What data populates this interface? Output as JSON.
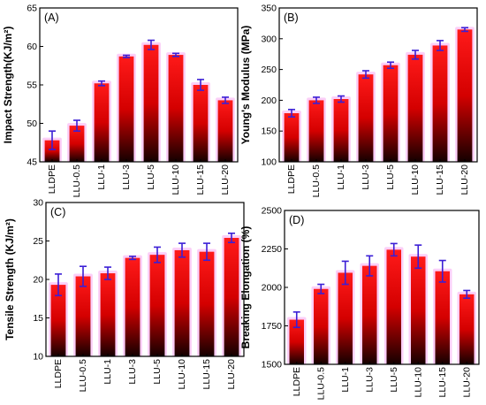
{
  "chart_data": [
    {
      "type": "bar",
      "panel_label": "(A)",
      "ylabel": "Impact Strength(KJ/m²)",
      "categories": [
        "LLDPE",
        "LLU-0.5",
        "LLU-1",
        "LLU-3",
        "LLU-5",
        "LLU-10",
        "LLU-15",
        "LLU-20"
      ],
      "values": [
        47.8,
        49.7,
        55.2,
        58.7,
        60.2,
        58.9,
        55.0,
        53.0
      ],
      "errors": [
        1.2,
        0.7,
        0.3,
        0.15,
        0.6,
        0.2,
        0.7,
        0.4
      ],
      "ylim": [
        45,
        65
      ],
      "yticks": [
        "45",
        "50",
        "55",
        "60",
        "65"
      ]
    },
    {
      "type": "bar",
      "panel_label": "(B)",
      "ylabel": "Young's Modulus (MPa)",
      "categories": [
        "LLDPE",
        "LLU-0.5",
        "LLU-1",
        "LLU-3",
        "LLU-5",
        "LLU-10",
        "LLU-15",
        "LLU-20"
      ],
      "values": [
        179,
        200,
        202,
        242,
        257,
        274,
        289,
        315
      ],
      "errors": [
        6,
        5,
        5,
        6,
        5,
        7,
        8,
        3
      ],
      "ylim": [
        100,
        350
      ],
      "yticks": [
        "100",
        "150",
        "200",
        "250",
        "300",
        "350"
      ]
    },
    {
      "type": "bar",
      "panel_label": "(C)",
      "ylabel": "Tensile Strength (KJ/m²)",
      "categories": [
        "LLDPE",
        "LLU-0.5",
        "LLU-1",
        "LLU-3",
        "LLU-5",
        "LLU-10",
        "LLU-15",
        "LLU-20"
      ],
      "values": [
        19.3,
        20.4,
        20.8,
        22.8,
        23.2,
        23.8,
        23.6,
        25.4
      ],
      "errors": [
        1.4,
        1.3,
        0.8,
        0.2,
        1.0,
        0.9,
        1.1,
        0.6
      ],
      "ylim": [
        10,
        30
      ],
      "yticks": [
        "10",
        "15",
        "20",
        "25",
        "30"
      ]
    },
    {
      "type": "bar",
      "panel_label": "(D)",
      "ylabel": "Breaking Elongation (%)",
      "categories": [
        "LLDPE",
        "LLU-0.5",
        "LLU-1",
        "LLU-3",
        "LLU-5",
        "LLU-10",
        "LLU-15",
        "LLU-20"
      ],
      "values": [
        1790,
        1990,
        2095,
        2140,
        2245,
        2200,
        2105,
        1955
      ],
      "errors": [
        50,
        30,
        75,
        65,
        40,
        75,
        70,
        25
      ],
      "ylim": [
        1500,
        2500
      ],
      "yticks": [
        "1500",
        "1750",
        "2000",
        "2250",
        "2500"
      ]
    }
  ],
  "colors": {
    "bar_top": "#ff1a1a",
    "bar_mid": "#d40000",
    "bar_bottom": "#140000",
    "error_bar": "#3b1fd6",
    "glow": "#f7a8f2"
  }
}
